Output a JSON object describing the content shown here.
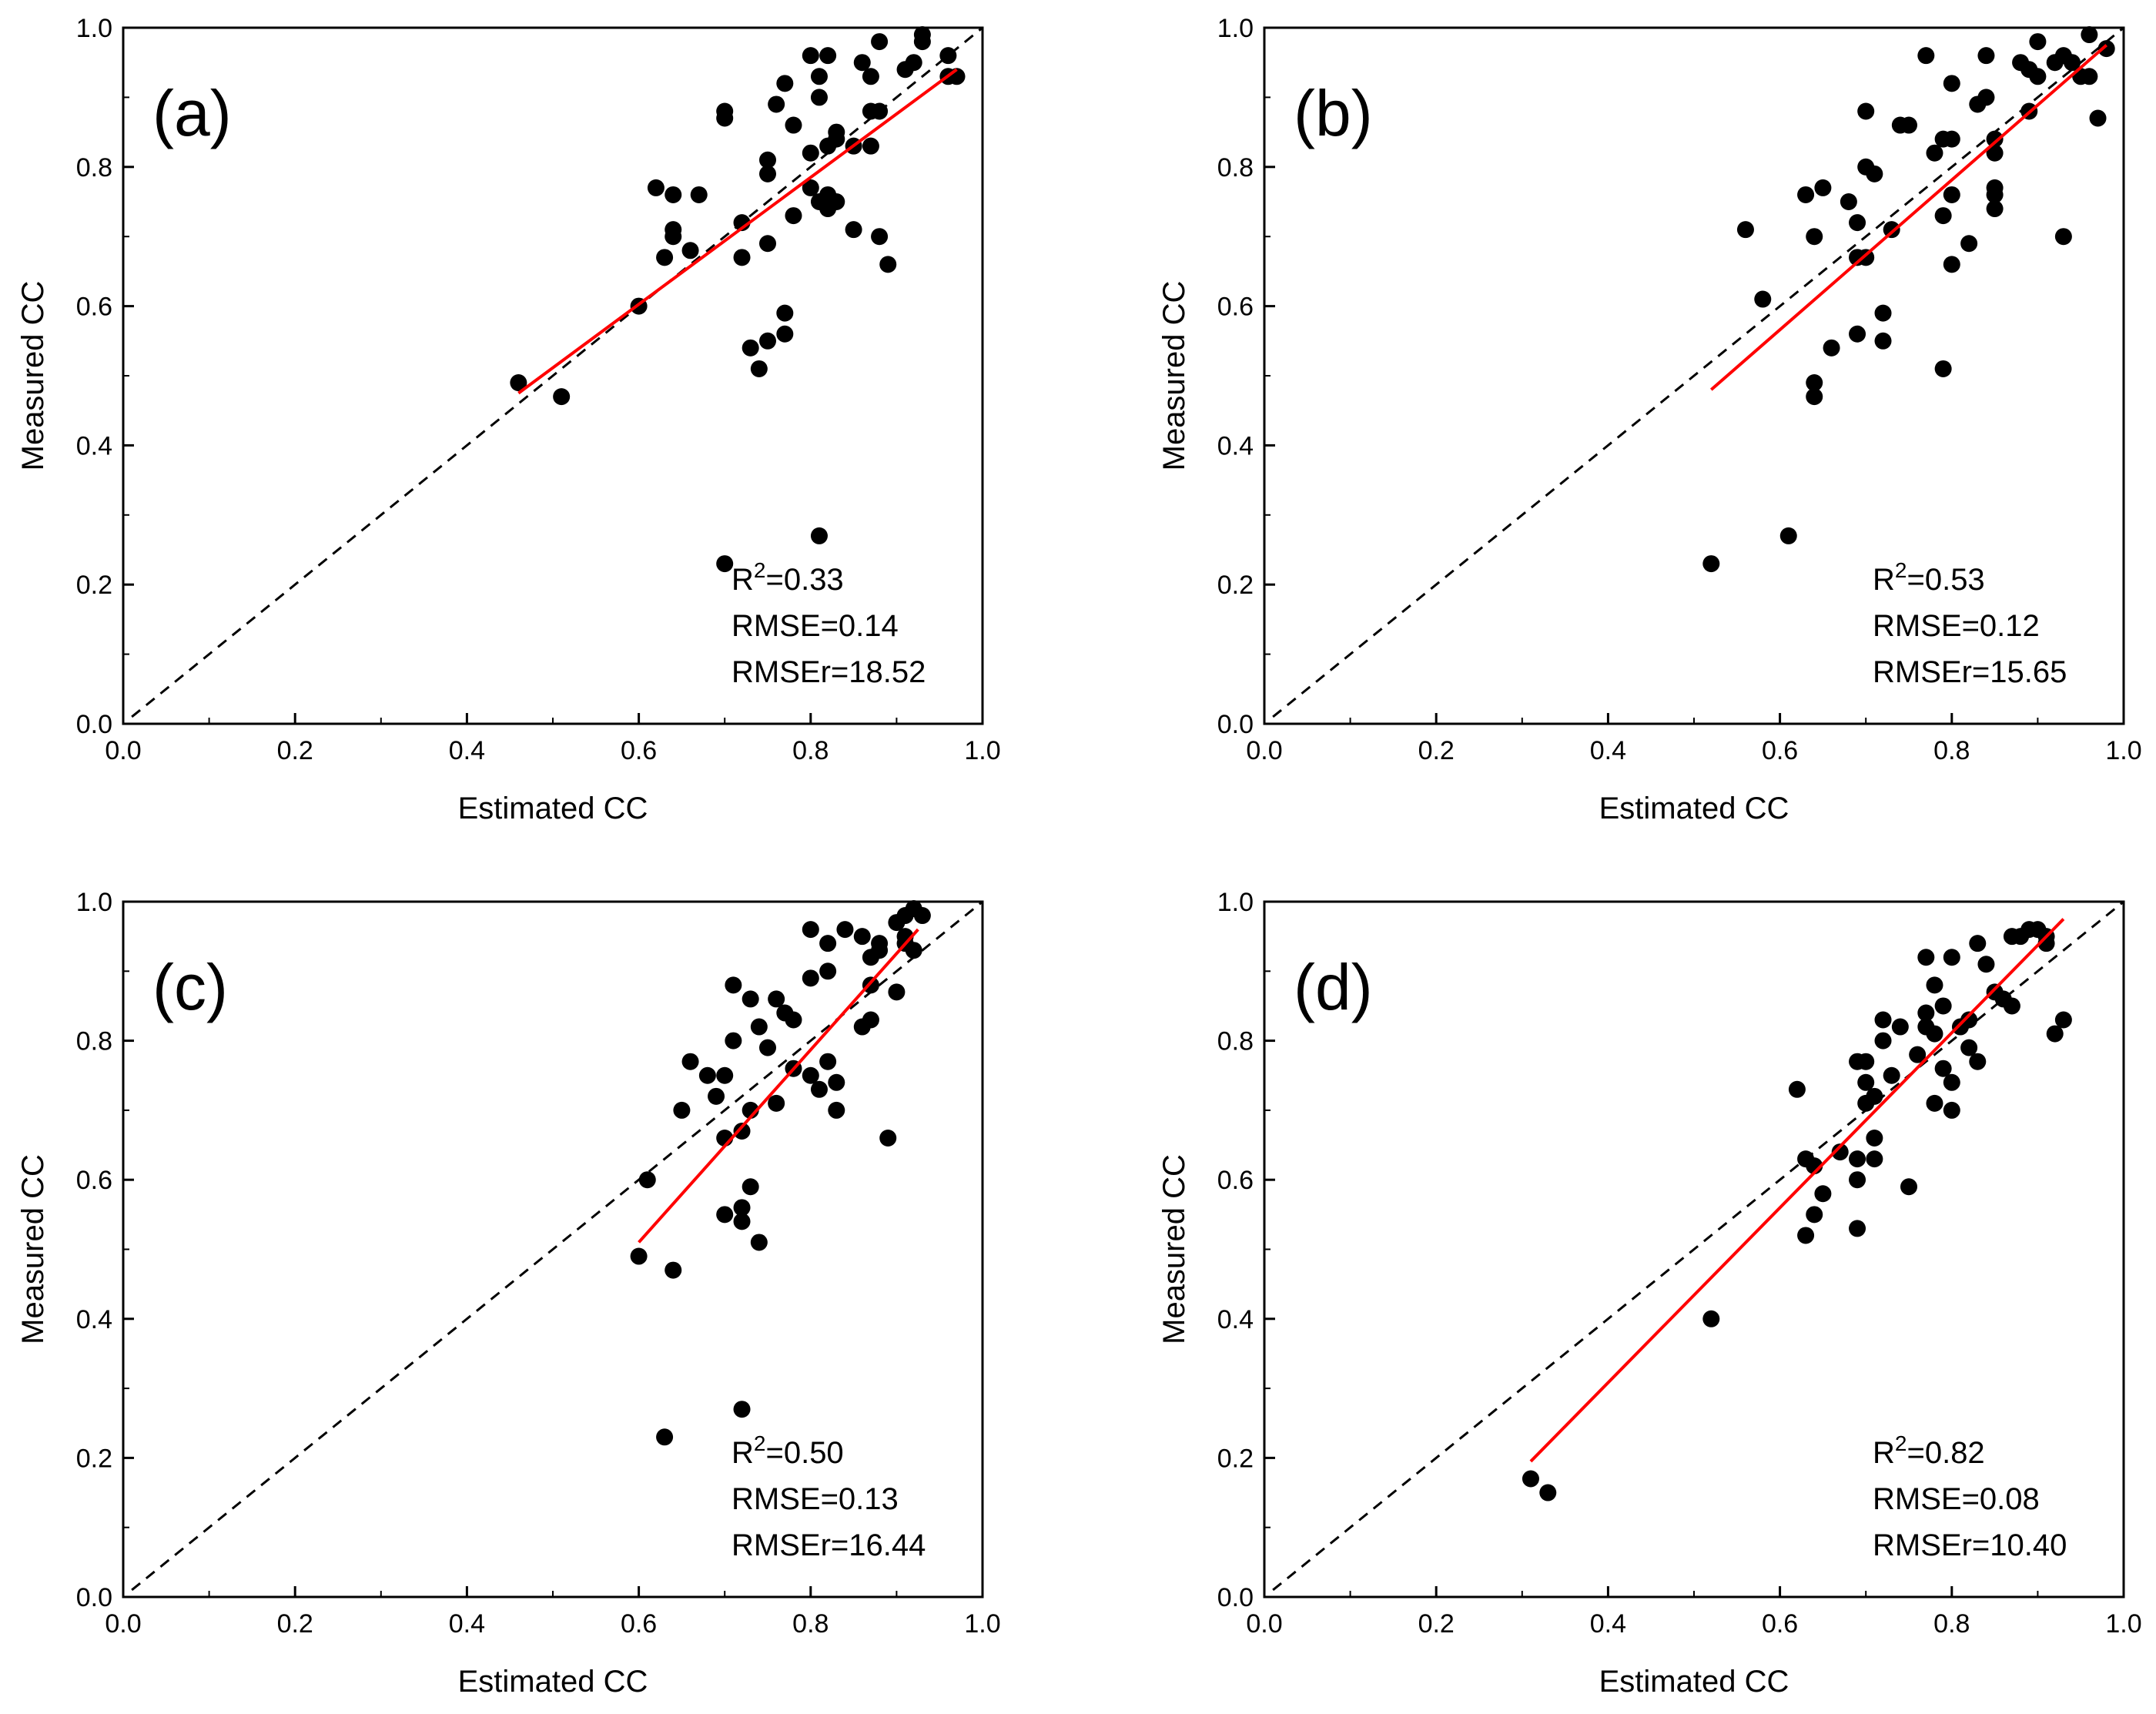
{
  "chart_data": [
    {
      "type": "scatter",
      "panel_label": "(a)",
      "xlabel": "Estimated CC",
      "ylabel": "Measured CC",
      "xlim": [
        0.0,
        1.0
      ],
      "ylim": [
        0.0,
        1.0
      ],
      "xticks": [
        "0.0",
        "0.2",
        "0.4",
        "0.6",
        "0.8",
        "1.0"
      ],
      "yticks": [
        "0.0",
        "0.2",
        "0.4",
        "0.6",
        "0.8",
        "1.0"
      ],
      "one_to_one_line": {
        "style": "dashed",
        "color": "#000000"
      },
      "fit_line": {
        "color": "#ff0000",
        "x": [
          0.46,
          0.97
        ],
        "y": [
          0.475,
          0.94
        ]
      },
      "stats": {
        "r2_label": "R",
        "r2_sup": "2",
        "r2_value": "=0.33",
        "rmse": "RMSE=0.14",
        "rmser": "RMSEr=18.52"
      },
      "points": [
        [
          0.46,
          0.49
        ],
        [
          0.51,
          0.47
        ],
        [
          0.6,
          0.6
        ],
        [
          0.62,
          0.77
        ],
        [
          0.63,
          0.67
        ],
        [
          0.64,
          0.7
        ],
        [
          0.64,
          0.71
        ],
        [
          0.64,
          0.76
        ],
        [
          0.66,
          0.68
        ],
        [
          0.67,
          0.76
        ],
        [
          0.7,
          0.23
        ],
        [
          0.7,
          0.87
        ],
        [
          0.7,
          0.88
        ],
        [
          0.72,
          0.67
        ],
        [
          0.72,
          0.72
        ],
        [
          0.73,
          0.54
        ],
        [
          0.74,
          0.51
        ],
        [
          0.75,
          0.55
        ],
        [
          0.75,
          0.69
        ],
        [
          0.75,
          0.79
        ],
        [
          0.75,
          0.81
        ],
        [
          0.76,
          0.89
        ],
        [
          0.77,
          0.56
        ],
        [
          0.77,
          0.59
        ],
        [
          0.77,
          0.92
        ],
        [
          0.78,
          0.73
        ],
        [
          0.78,
          0.86
        ],
        [
          0.8,
          0.77
        ],
        [
          0.8,
          0.82
        ],
        [
          0.8,
          0.96
        ],
        [
          0.81,
          0.27
        ],
        [
          0.81,
          0.75
        ],
        [
          0.81,
          0.9
        ],
        [
          0.81,
          0.93
        ],
        [
          0.82,
          0.74
        ],
        [
          0.82,
          0.76
        ],
        [
          0.82,
          0.83
        ],
        [
          0.82,
          0.96
        ],
        [
          0.83,
          0.75
        ],
        [
          0.83,
          0.84
        ],
        [
          0.83,
          0.85
        ],
        [
          0.85,
          0.71
        ],
        [
          0.85,
          0.83
        ],
        [
          0.86,
          0.95
        ],
        [
          0.87,
          0.83
        ],
        [
          0.87,
          0.88
        ],
        [
          0.87,
          0.93
        ],
        [
          0.88,
          0.7
        ],
        [
          0.88,
          0.88
        ],
        [
          0.88,
          0.98
        ],
        [
          0.89,
          0.66
        ],
        [
          0.91,
          0.94
        ],
        [
          0.92,
          0.95
        ],
        [
          0.93,
          0.98
        ],
        [
          0.93,
          0.99
        ],
        [
          0.96,
          0.93
        ],
        [
          0.96,
          0.96
        ],
        [
          0.97,
          0.93
        ]
      ]
    },
    {
      "type": "scatter",
      "panel_label": "(b)",
      "xlabel": "Estimated CC",
      "ylabel": "Measured CC",
      "xlim": [
        0.0,
        1.0
      ],
      "ylim": [
        0.0,
        1.0
      ],
      "xticks": [
        "0.0",
        "0.2",
        "0.4",
        "0.6",
        "0.8",
        "1.0"
      ],
      "yticks": [
        "0.0",
        "0.2",
        "0.4",
        "0.6",
        "0.8",
        "1.0"
      ],
      "one_to_one_line": {
        "style": "dashed",
        "color": "#000000"
      },
      "fit_line": {
        "color": "#ff0000",
        "x": [
          0.52,
          0.98
        ],
        "y": [
          0.48,
          0.975
        ]
      },
      "stats": {
        "r2_label": "R",
        "r2_sup": "2",
        "r2_value": "=0.53",
        "rmse": "RMSE=0.12",
        "rmser": "RMSEr=15.65"
      },
      "points": [
        [
          0.52,
          0.23
        ],
        [
          0.56,
          0.71
        ],
        [
          0.58,
          0.61
        ],
        [
          0.61,
          0.27
        ],
        [
          0.63,
          0.76
        ],
        [
          0.64,
          0.47
        ],
        [
          0.64,
          0.49
        ],
        [
          0.64,
          0.7
        ],
        [
          0.65,
          0.77
        ],
        [
          0.66,
          0.54
        ],
        [
          0.68,
          0.75
        ],
        [
          0.69,
          0.56
        ],
        [
          0.69,
          0.67
        ],
        [
          0.69,
          0.72
        ],
        [
          0.7,
          0.67
        ],
        [
          0.7,
          0.8
        ],
        [
          0.7,
          0.88
        ],
        [
          0.71,
          0.79
        ],
        [
          0.72,
          0.55
        ],
        [
          0.72,
          0.59
        ],
        [
          0.73,
          0.71
        ],
        [
          0.74,
          0.86
        ],
        [
          0.75,
          0.86
        ],
        [
          0.77,
          0.96
        ],
        [
          0.78,
          0.82
        ],
        [
          0.79,
          0.51
        ],
        [
          0.79,
          0.73
        ],
        [
          0.79,
          0.84
        ],
        [
          0.8,
          0.66
        ],
        [
          0.8,
          0.76
        ],
        [
          0.8,
          0.84
        ],
        [
          0.8,
          0.92
        ],
        [
          0.82,
          0.69
        ],
        [
          0.83,
          0.89
        ],
        [
          0.84,
          0.9
        ],
        [
          0.84,
          0.96
        ],
        [
          0.85,
          0.74
        ],
        [
          0.85,
          0.76
        ],
        [
          0.85,
          0.77
        ],
        [
          0.85,
          0.82
        ],
        [
          0.85,
          0.84
        ],
        [
          0.88,
          0.95
        ],
        [
          0.89,
          0.88
        ],
        [
          0.89,
          0.94
        ],
        [
          0.9,
          0.93
        ],
        [
          0.9,
          0.98
        ],
        [
          0.92,
          0.95
        ],
        [
          0.93,
          0.7
        ],
        [
          0.93,
          0.96
        ],
        [
          0.94,
          0.95
        ],
        [
          0.95,
          0.93
        ],
        [
          0.96,
          0.93
        ],
        [
          0.96,
          0.99
        ],
        [
          0.97,
          0.87
        ],
        [
          0.98,
          0.97
        ]
      ]
    },
    {
      "type": "scatter",
      "panel_label": "(c)",
      "xlabel": "Estimated CC",
      "ylabel": "Measured CC",
      "xlim": [
        0.0,
        1.0
      ],
      "ylim": [
        0.0,
        1.0
      ],
      "xticks": [
        "0.0",
        "0.2",
        "0.4",
        "0.6",
        "0.8",
        "1.0"
      ],
      "yticks": [
        "0.0",
        "0.2",
        "0.4",
        "0.6",
        "0.8",
        "1.0"
      ],
      "one_to_one_line": {
        "style": "dashed",
        "color": "#000000"
      },
      "fit_line": {
        "color": "#ff0000",
        "x": [
          0.6,
          0.925
        ],
        "y": [
          0.51,
          0.96
        ]
      },
      "stats": {
        "r2_label": "R",
        "r2_sup": "2",
        "r2_value": "=0.50",
        "rmse": "RMSE=0.13",
        "rmser": "RMSEr=16.44"
      },
      "points": [
        [
          0.6,
          0.49
        ],
        [
          0.61,
          0.6
        ],
        [
          0.63,
          0.23
        ],
        [
          0.64,
          0.47
        ],
        [
          0.65,
          0.7
        ],
        [
          0.66,
          0.77
        ],
        [
          0.68,
          0.75
        ],
        [
          0.69,
          0.72
        ],
        [
          0.7,
          0.66
        ],
        [
          0.7,
          0.75
        ],
        [
          0.7,
          0.55
        ],
        [
          0.71,
          0.88
        ],
        [
          0.71,
          0.8
        ],
        [
          0.72,
          0.56
        ],
        [
          0.72,
          0.54
        ],
        [
          0.72,
          0.27
        ],
        [
          0.72,
          0.67
        ],
        [
          0.73,
          0.7
        ],
        [
          0.73,
          0.86
        ],
        [
          0.73,
          0.59
        ],
        [
          0.74,
          0.82
        ],
        [
          0.74,
          0.51
        ],
        [
          0.75,
          0.79
        ],
        [
          0.76,
          0.86
        ],
        [
          0.76,
          0.71
        ],
        [
          0.77,
          0.84
        ],
        [
          0.78,
          0.76
        ],
        [
          0.78,
          0.83
        ],
        [
          0.8,
          0.75
        ],
        [
          0.8,
          0.89
        ],
        [
          0.8,
          0.96
        ],
        [
          0.81,
          0.73
        ],
        [
          0.82,
          0.77
        ],
        [
          0.82,
          0.9
        ],
        [
          0.82,
          0.94
        ],
        [
          0.83,
          0.74
        ],
        [
          0.83,
          0.7
        ],
        [
          0.84,
          0.96
        ],
        [
          0.86,
          0.95
        ],
        [
          0.86,
          0.82
        ],
        [
          0.87,
          0.83
        ],
        [
          0.87,
          0.88
        ],
        [
          0.87,
          0.92
        ],
        [
          0.88,
          0.93
        ],
        [
          0.88,
          0.94
        ],
        [
          0.89,
          0.66
        ],
        [
          0.9,
          0.87
        ],
        [
          0.9,
          0.97
        ],
        [
          0.91,
          0.98
        ],
        [
          0.91,
          0.95
        ],
        [
          0.91,
          0.94
        ],
        [
          0.92,
          0.93
        ],
        [
          0.92,
          0.99
        ],
        [
          0.93,
          0.98
        ]
      ]
    },
    {
      "type": "scatter",
      "panel_label": "(d)",
      "xlabel": "Estimated CC",
      "ylabel": "Measured CC",
      "xlim": [
        0.0,
        1.0
      ],
      "ylim": [
        0.0,
        1.0
      ],
      "xticks": [
        "0.0",
        "0.2",
        "0.4",
        "0.6",
        "0.8",
        "1.0"
      ],
      "yticks": [
        "0.0",
        "0.2",
        "0.4",
        "0.6",
        "0.8",
        "1.0"
      ],
      "one_to_one_line": {
        "style": "dashed",
        "color": "#000000"
      },
      "fit_line": {
        "color": "#ff0000",
        "x": [
          0.31,
          0.93
        ],
        "y": [
          0.195,
          0.975
        ]
      },
      "stats": {
        "r2_label": "R",
        "r2_sup": "2",
        "r2_value": "=0.82",
        "rmse": "RMSE=0.08",
        "rmser": "RMSEr=10.40"
      },
      "points": [
        [
          0.31,
          0.17
        ],
        [
          0.33,
          0.15
        ],
        [
          0.52,
          0.4
        ],
        [
          0.62,
          0.73
        ],
        [
          0.63,
          0.52
        ],
        [
          0.63,
          0.63
        ],
        [
          0.64,
          0.55
        ],
        [
          0.64,
          0.62
        ],
        [
          0.65,
          0.58
        ],
        [
          0.67,
          0.64
        ],
        [
          0.69,
          0.77
        ],
        [
          0.69,
          0.53
        ],
        [
          0.69,
          0.6
        ],
        [
          0.69,
          0.63
        ],
        [
          0.7,
          0.71
        ],
        [
          0.7,
          0.74
        ],
        [
          0.7,
          0.77
        ],
        [
          0.71,
          0.66
        ],
        [
          0.71,
          0.72
        ],
        [
          0.71,
          0.63
        ],
        [
          0.72,
          0.8
        ],
        [
          0.72,
          0.83
        ],
        [
          0.73,
          0.75
        ],
        [
          0.74,
          0.82
        ],
        [
          0.75,
          0.59
        ],
        [
          0.76,
          0.78
        ],
        [
          0.77,
          0.82
        ],
        [
          0.77,
          0.84
        ],
        [
          0.77,
          0.92
        ],
        [
          0.78,
          0.71
        ],
        [
          0.78,
          0.81
        ],
        [
          0.78,
          0.88
        ],
        [
          0.79,
          0.76
        ],
        [
          0.79,
          0.85
        ],
        [
          0.8,
          0.92
        ],
        [
          0.8,
          0.7
        ],
        [
          0.8,
          0.74
        ],
        [
          0.81,
          0.82
        ],
        [
          0.82,
          0.79
        ],
        [
          0.82,
          0.83
        ],
        [
          0.83,
          0.77
        ],
        [
          0.83,
          0.94
        ],
        [
          0.84,
          0.91
        ],
        [
          0.85,
          0.87
        ],
        [
          0.86,
          0.86
        ],
        [
          0.87,
          0.85
        ],
        [
          0.87,
          0.95
        ],
        [
          0.88,
          0.95
        ],
        [
          0.89,
          0.96
        ],
        [
          0.9,
          0.96
        ],
        [
          0.91,
          0.94
        ],
        [
          0.91,
          0.95
        ],
        [
          0.92,
          0.81
        ],
        [
          0.93,
          0.83
        ]
      ]
    }
  ]
}
